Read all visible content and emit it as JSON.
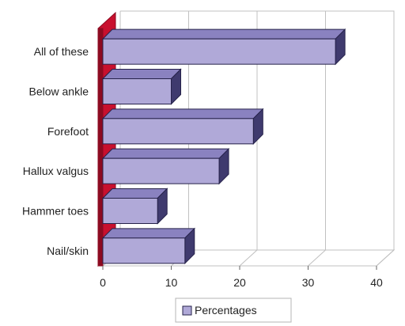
{
  "chart_data": {
    "type": "bar",
    "orientation": "horizontal",
    "three_d": true,
    "categories": [
      "All of these",
      "Below ankle",
      "Forefoot",
      "Hallux valgus",
      "Hammer toes",
      "Nail/skin"
    ],
    "series": [
      {
        "name": "Percentages",
        "values": [
          34,
          10,
          22,
          17,
          8,
          12
        ]
      }
    ],
    "xlim": [
      0,
      40
    ],
    "xticks": [
      0,
      10,
      20,
      30,
      40
    ],
    "grid": true,
    "legend_position": "bottom",
    "colors": {
      "bar_front": "#b0a9d8",
      "bar_top": "#8a82c0",
      "bar_side": "#3f3a6e",
      "bar_outline": "#26224a",
      "wall": "#c8102e",
      "wall_dark": "#8d0a20",
      "gridline": "#c0c0c0"
    }
  }
}
